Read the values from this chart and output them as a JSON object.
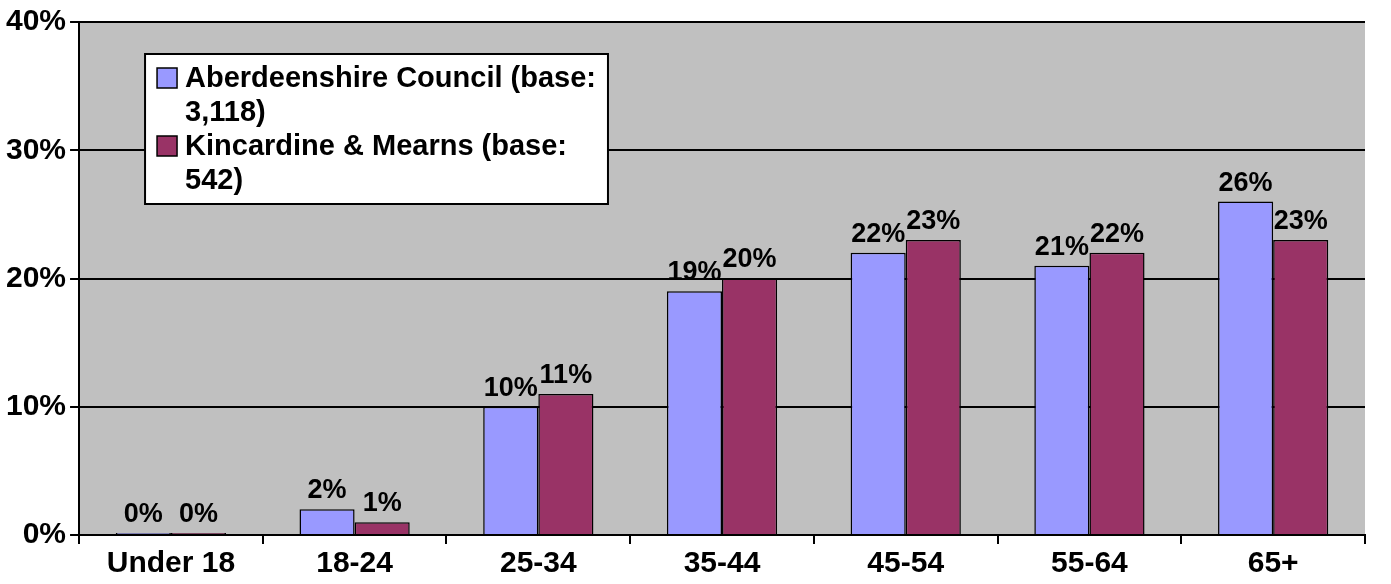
{
  "chart_data": {
    "type": "bar",
    "categories": [
      "Under 18",
      "18-24",
      "25-34",
      "35-44",
      "45-54",
      "55-64",
      "65+"
    ],
    "series": [
      {
        "name": "Aberdeenshire Council (base: 3,118)",
        "color": "#9999ff",
        "values": [
          0,
          2,
          10,
          19,
          22,
          21,
          26
        ],
        "value_labels": [
          "0%",
          "2%",
          "10%",
          "19%",
          "22%",
          "21%",
          "26%"
        ]
      },
      {
        "name": "Kincardine & Mearns (base: 542)",
        "color": "#993366",
        "values": [
          0,
          1,
          11,
          20,
          23,
          22,
          23
        ],
        "value_labels": [
          "0%",
          "1%",
          "11%",
          "20%",
          "23%",
          "22%",
          "23%"
        ]
      }
    ],
    "ylim": [
      0,
      40
    ],
    "yticks": [
      {
        "value": 0,
        "label": "0%"
      },
      {
        "value": 10,
        "label": "10%"
      },
      {
        "value": 20,
        "label": "20%"
      },
      {
        "value": 30,
        "label": "30%"
      },
      {
        "value": 40,
        "label": "40%"
      }
    ],
    "grid": "y",
    "legend": "top left"
  }
}
